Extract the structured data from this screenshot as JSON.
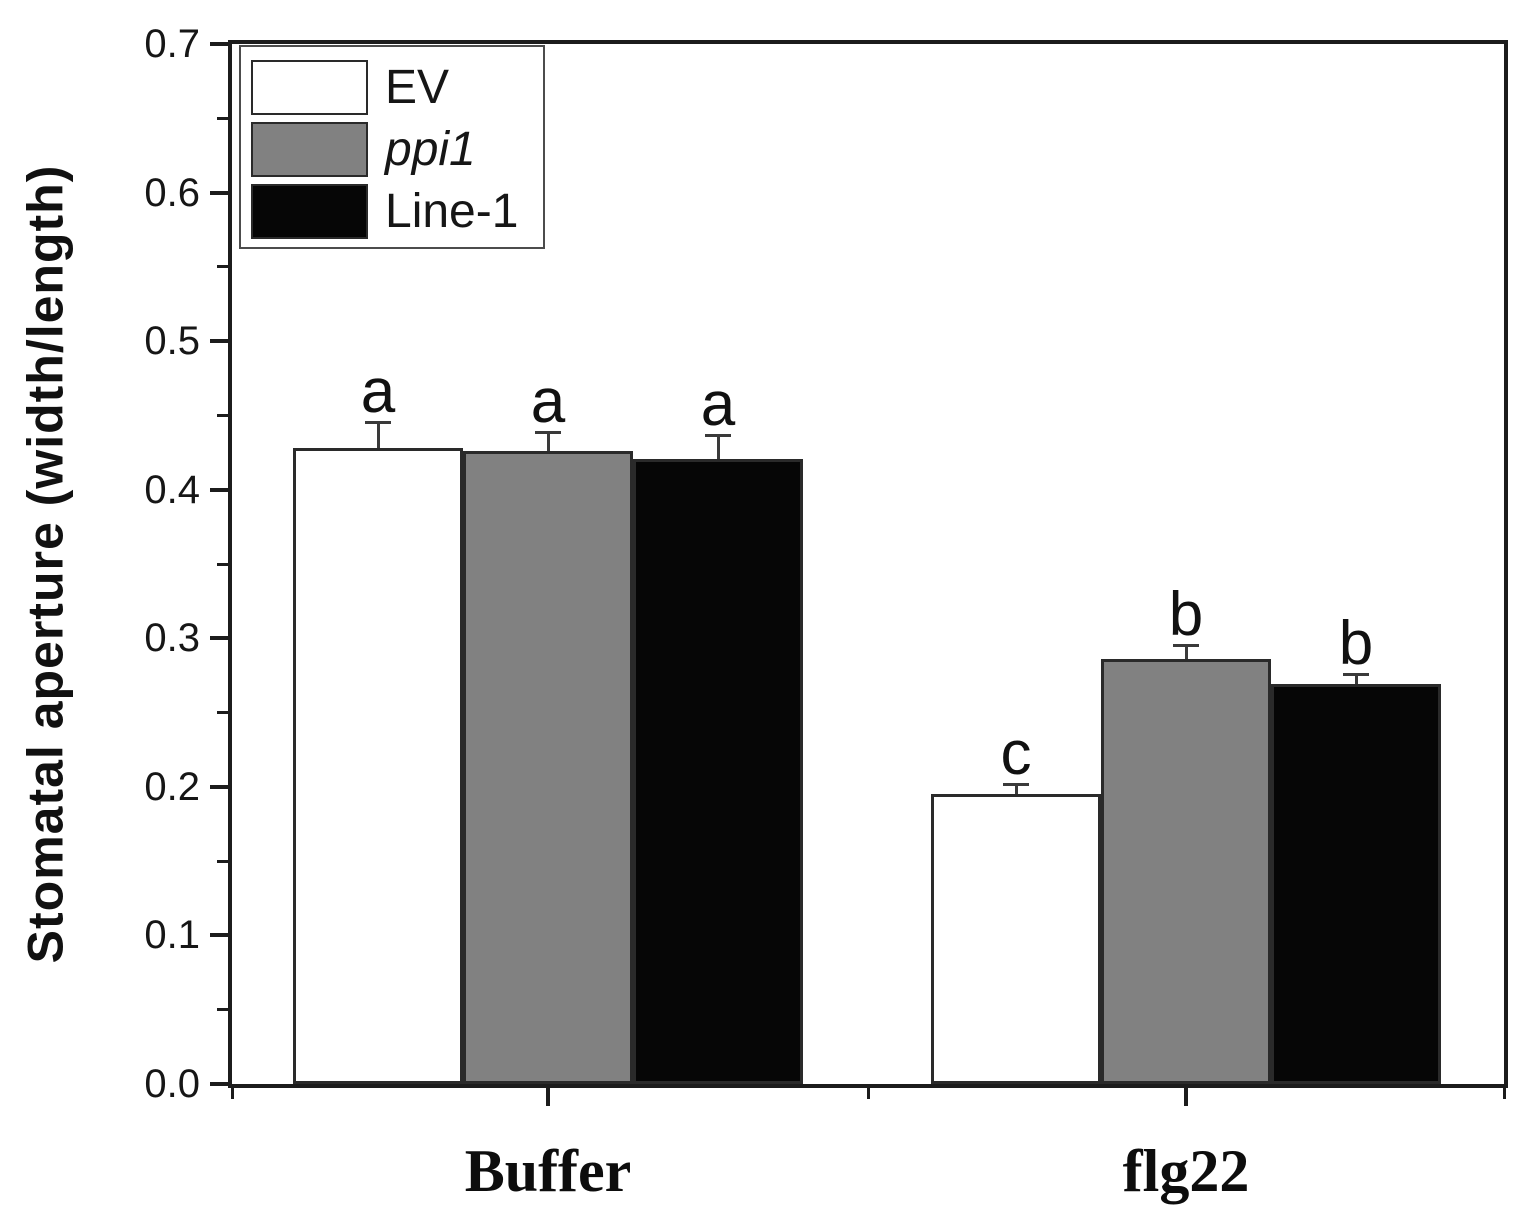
{
  "chart_data": {
    "type": "bar",
    "title": "",
    "ylabel": "Stomatal aperture (width/length)",
    "xlabel": "",
    "ylim": [
      0.0,
      0.7
    ],
    "yticks": [
      0.0,
      0.1,
      0.2,
      0.3,
      0.4,
      0.5,
      0.6,
      0.7
    ],
    "y_minor_tick_step": 0.05,
    "grid": false,
    "legend_position": "top-left-inside",
    "categories": [
      "Buffer",
      "flg22"
    ],
    "series": [
      {
        "name": "EV",
        "fill": "#ffffff",
        "italic": false,
        "values": [
          0.428,
          0.195
        ],
        "errors": [
          0.017,
          0.006
        ],
        "sig_letters": [
          "a",
          "c"
        ]
      },
      {
        "name": "ppi1",
        "fill": "#818181",
        "italic": true,
        "values": [
          0.426,
          0.286
        ],
        "errors": [
          0.012,
          0.009
        ],
        "sig_letters": [
          "a",
          "b"
        ]
      },
      {
        "name": "Line-1",
        "fill": "#060606",
        "italic": false,
        "values": [
          0.421,
          0.269
        ],
        "errors": [
          0.015,
          0.006
        ],
        "sig_letters": [
          "a",
          "b"
        ]
      }
    ],
    "colors": {
      "axis": "#1c1c1c",
      "bar_border": "#2a2a2a",
      "error_bar": "#3a3a3a",
      "text": "#111111"
    }
  }
}
